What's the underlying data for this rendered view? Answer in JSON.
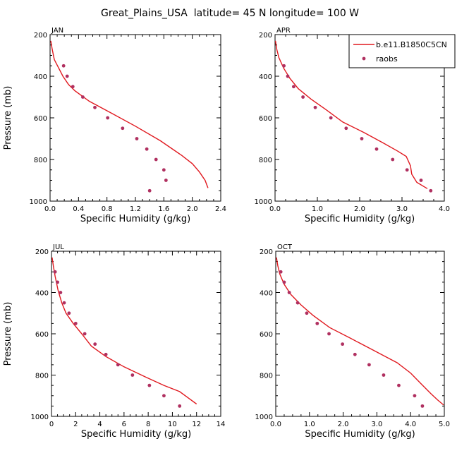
{
  "title": "Great_Plains_USA  latitude= 45 N longitude= 100 W",
  "chart_data": [
    {
      "type": "line",
      "panel": "JAN",
      "xlabel": "Specific Humidity (g/kg)",
      "ylabel": "Pressure (mb)",
      "xlim": [
        0,
        2.4
      ],
      "ylim": [
        1000,
        200
      ],
      "y_inverted": true,
      "xticks": [
        0.0,
        0.4,
        0.8,
        1.2,
        1.6,
        2.0,
        2.4
      ],
      "xtick_labels": [
        "0.0",
        "0.4",
        "0.8",
        "1.2",
        "1.6",
        "2.0",
        "2.4"
      ],
      "yticks": [
        200,
        400,
        600,
        800,
        1000
      ],
      "ytick_labels": [
        "200",
        "400",
        "600",
        "800",
        "1000"
      ],
      "series": [
        {
          "kind": "line",
          "color": "#e0191f",
          "points": [
            [
              0.01,
              230
            ],
            [
              0.03,
              270
            ],
            [
              0.06,
              320
            ],
            [
              0.12,
              360
            ],
            [
              0.18,
              400
            ],
            [
              0.26,
              440
            ],
            [
              0.35,
              470
            ],
            [
              0.55,
              520
            ],
            [
              0.85,
              575
            ],
            [
              1.2,
              640
            ],
            [
              1.55,
              710
            ],
            [
              1.85,
              780
            ],
            [
              2.0,
              820
            ],
            [
              2.1,
              860
            ],
            [
              2.18,
              900
            ],
            [
              2.22,
              937
            ]
          ]
        },
        {
          "kind": "scatter",
          "color": "#b03060",
          "points": [
            [
              0.19,
              350
            ],
            [
              0.24,
              400
            ],
            [
              0.32,
              450
            ],
            [
              0.46,
              500
            ],
            [
              0.63,
              550
            ],
            [
              0.81,
              600
            ],
            [
              1.02,
              650
            ],
            [
              1.22,
              700
            ],
            [
              1.36,
              750
            ],
            [
              1.49,
              800
            ],
            [
              1.6,
              850
            ],
            [
              1.63,
              900
            ],
            [
              1.4,
              950
            ]
          ]
        }
      ],
      "legend": [
        {
          "label": "b.e11.B1850C5CN",
          "kind": "line",
          "color": "#e0191f"
        },
        {
          "label": "raobs",
          "kind": "scatter",
          "color": "#b03060"
        }
      ]
    },
    {
      "type": "line",
      "panel": "APR",
      "xlabel": "Specific Humidity (g/kg)",
      "xlim": [
        0,
        4.0
      ],
      "ylim": [
        1000,
        200
      ],
      "y_inverted": true,
      "xticks": [
        0.0,
        1.0,
        2.0,
        3.0,
        4.0
      ],
      "xtick_labels": [
        "0.0",
        "1.0",
        "2.0",
        "3.0",
        "4.0"
      ],
      "yticks": [
        200,
        400,
        600,
        800,
        1000
      ],
      "ytick_labels": [
        "200",
        "400",
        "600",
        "800",
        "1000"
      ],
      "series": [
        {
          "kind": "line",
          "color": "#e0191f",
          "points": [
            [
              0.01,
              230
            ],
            [
              0.04,
              270
            ],
            [
              0.09,
              310
            ],
            [
              0.2,
              360
            ],
            [
              0.35,
              410
            ],
            [
              0.55,
              460
            ],
            [
              0.85,
              510
            ],
            [
              1.2,
              560
            ],
            [
              1.6,
              620
            ],
            [
              2.1,
              670
            ],
            [
              2.55,
              720
            ],
            [
              2.9,
              760
            ],
            [
              3.1,
              785
            ],
            [
              3.2,
              830
            ],
            [
              3.23,
              870
            ],
            [
              3.35,
              910
            ],
            [
              3.6,
              940
            ]
          ]
        },
        {
          "kind": "scatter",
          "color": "#b03060",
          "points": [
            [
              0.21,
              350
            ],
            [
              0.3,
              400
            ],
            [
              0.44,
              450
            ],
            [
              0.66,
              500
            ],
            [
              0.95,
              550
            ],
            [
              1.32,
              600
            ],
            [
              1.68,
              650
            ],
            [
              2.05,
              700
            ],
            [
              2.4,
              750
            ],
            [
              2.78,
              800
            ],
            [
              3.12,
              850
            ],
            [
              3.45,
              900
            ],
            [
              3.68,
              950
            ]
          ]
        }
      ],
      "legend": [
        {
          "label": "b.e11.B1850C5CN",
          "kind": "line",
          "color": "#e0191f"
        },
        {
          "label": "raobs",
          "kind": "scatter",
          "color": "#b03060"
        }
      ]
    },
    {
      "type": "line",
      "panel": "JUL",
      "xlabel": "Specific Humidity (g/kg)",
      "ylabel": "Pressure (mb)",
      "xlim": [
        0,
        14
      ],
      "ylim": [
        1000,
        200
      ],
      "y_inverted": true,
      "xticks": [
        0,
        2,
        4,
        6,
        8,
        10,
        12,
        14
      ],
      "xtick_labels": [
        "0",
        "2",
        "4",
        "6",
        "8",
        "10",
        "12",
        "14"
      ],
      "yticks": [
        200,
        400,
        600,
        800,
        1000
      ],
      "ytick_labels": [
        "200",
        "400",
        "600",
        "800",
        "1000"
      ],
      "series": [
        {
          "kind": "line",
          "color": "#e0191f",
          "points": [
            [
              0.05,
              230
            ],
            [
              0.15,
              270
            ],
            [
              0.3,
              320
            ],
            [
              0.55,
              390
            ],
            [
              0.85,
              450
            ],
            [
              1.2,
              500
            ],
            [
              1.8,
              550
            ],
            [
              2.5,
              600
            ],
            [
              3.3,
              660
            ],
            [
              4.5,
              710
            ],
            [
              6.0,
              760
            ],
            [
              7.8,
              810
            ],
            [
              9.3,
              850
            ],
            [
              10.6,
              880
            ],
            [
              11.3,
              910
            ],
            [
              12.0,
              940
            ]
          ]
        },
        {
          "kind": "scatter",
          "color": "#b03060",
          "points": [
            [
              0.3,
              300
            ],
            [
              0.5,
              350
            ],
            [
              0.75,
              400
            ],
            [
              1.05,
              450
            ],
            [
              1.45,
              500
            ],
            [
              2.0,
              550
            ],
            [
              2.75,
              600
            ],
            [
              3.6,
              650
            ],
            [
              4.5,
              700
            ],
            [
              5.5,
              750
            ],
            [
              6.7,
              800
            ],
            [
              8.1,
              850
            ],
            [
              9.3,
              900
            ],
            [
              10.6,
              950
            ]
          ]
        }
      ],
      "legend": [
        {
          "label": "b.e11.B1850C5CN",
          "kind": "line",
          "color": "#e0191f"
        },
        {
          "label": "raobs",
          "kind": "scatter",
          "color": "#b03060"
        }
      ]
    },
    {
      "type": "line",
      "panel": "OCT",
      "xlabel": "Specific Humidity (g/kg)",
      "xlim": [
        0,
        5.0
      ],
      "ylim": [
        1000,
        200
      ],
      "y_inverted": true,
      "xticks": [
        0.0,
        1.0,
        2.0,
        3.0,
        4.0,
        5.0
      ],
      "xtick_labels": [
        "0.0",
        "1.0",
        "2.0",
        "3.0",
        "4.0",
        "5.0"
      ],
      "yticks": [
        200,
        400,
        600,
        800,
        1000
      ],
      "ytick_labels": [
        "200",
        "400",
        "600",
        "800",
        "1000"
      ],
      "series": [
        {
          "kind": "line",
          "color": "#e0191f",
          "points": [
            [
              0.02,
              230
            ],
            [
              0.06,
              270
            ],
            [
              0.12,
              310
            ],
            [
              0.25,
              360
            ],
            [
              0.45,
              410
            ],
            [
              0.75,
              460
            ],
            [
              1.1,
              510
            ],
            [
              1.6,
              570
            ],
            [
              2.2,
              620
            ],
            [
              2.9,
              680
            ],
            [
              3.6,
              740
            ],
            [
              4.0,
              790
            ],
            [
              4.3,
              840
            ],
            [
              4.6,
              890
            ],
            [
              4.8,
              920
            ],
            [
              4.98,
              945
            ]
          ]
        },
        {
          "kind": "scatter",
          "color": "#b03060",
          "points": [
            [
              0.15,
              300
            ],
            [
              0.25,
              350
            ],
            [
              0.4,
              400
            ],
            [
              0.65,
              450
            ],
            [
              0.92,
              500
            ],
            [
              1.23,
              550
            ],
            [
              1.58,
              600
            ],
            [
              1.98,
              650
            ],
            [
              2.35,
              700
            ],
            [
              2.77,
              750
            ],
            [
              3.2,
              800
            ],
            [
              3.65,
              850
            ],
            [
              4.12,
              900
            ],
            [
              4.35,
              950
            ]
          ]
        }
      ],
      "legend": [
        {
          "label": "b.e11.B1850C5CN",
          "kind": "line",
          "color": "#e0191f"
        },
        {
          "label": "raobs",
          "kind": "scatter",
          "color": "#b03060"
        }
      ]
    }
  ]
}
